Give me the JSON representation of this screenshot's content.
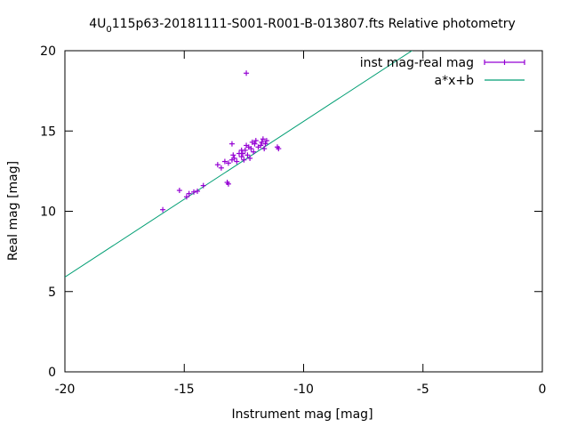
{
  "chart_data": {
    "type": "scatter",
    "title_main": "4U",
    "title_sub": "0",
    "title_rest": "115p63-20181111-S001-R001-B-013807.fts Relative photometry",
    "xlabel": "Instrument mag [mag]",
    "ylabel": "Real mag [mag]",
    "xlim": [
      -20,
      0
    ],
    "ylim": [
      0,
      20
    ],
    "xticks": [
      -20,
      -15,
      -10,
      -5,
      0
    ],
    "yticks": [
      0,
      5,
      10,
      15,
      20
    ],
    "xtick_labels": [
      "-20",
      "-15",
      "-10",
      "-5",
      "0"
    ],
    "ytick_labels": [
      "0",
      "5",
      "10",
      "15",
      "20"
    ],
    "grid": false,
    "legend_position": "top-right",
    "series": [
      {
        "name": "inst mag-real mag",
        "style": "points-with-errorbars",
        "color": "#9400d3",
        "points": [
          [
            -12.4,
            18.6
          ],
          [
            -15.9,
            10.1
          ],
          [
            -15.2,
            11.3
          ],
          [
            -14.9,
            10.9
          ],
          [
            -14.8,
            11.1
          ],
          [
            -14.6,
            11.2
          ],
          [
            -14.45,
            11.25
          ],
          [
            -14.2,
            11.6
          ],
          [
            -13.2,
            11.8
          ],
          [
            -13.15,
            11.7
          ],
          [
            -13.6,
            12.9
          ],
          [
            -13.45,
            12.7
          ],
          [
            -13.3,
            13.1
          ],
          [
            -13.15,
            13.0
          ],
          [
            -13.0,
            13.2
          ],
          [
            -12.95,
            13.5
          ],
          [
            -12.8,
            13.1
          ],
          [
            -12.7,
            13.6
          ],
          [
            -12.6,
            13.4
          ],
          [
            -12.5,
            13.2
          ],
          [
            -12.45,
            13.8
          ],
          [
            -12.35,
            13.5
          ],
          [
            -12.3,
            14.0
          ],
          [
            -12.25,
            13.3
          ],
          [
            -12.2,
            13.9
          ],
          [
            -12.15,
            14.3
          ],
          [
            -12.1,
            13.7
          ],
          [
            -12.05,
            14.2
          ],
          [
            -12.0,
            14.4
          ],
          [
            -11.9,
            14.0
          ],
          [
            -11.8,
            14.1
          ],
          [
            -11.75,
            14.3
          ],
          [
            -11.7,
            14.5
          ],
          [
            -11.65,
            13.9
          ],
          [
            -11.6,
            14.2
          ],
          [
            -11.55,
            14.4
          ],
          [
            -11.1,
            14.0
          ],
          [
            -11.05,
            13.9
          ],
          [
            -13.0,
            14.2
          ],
          [
            -12.6,
            13.8
          ],
          [
            -12.4,
            14.1
          ],
          [
            -12.9,
            13.3
          ],
          [
            -12.55,
            13.6
          ]
        ]
      },
      {
        "name": "a*x+b",
        "style": "line",
        "color": "#009e73",
        "fit": {
          "a": 0.97,
          "b": 25.3
        }
      }
    ]
  }
}
